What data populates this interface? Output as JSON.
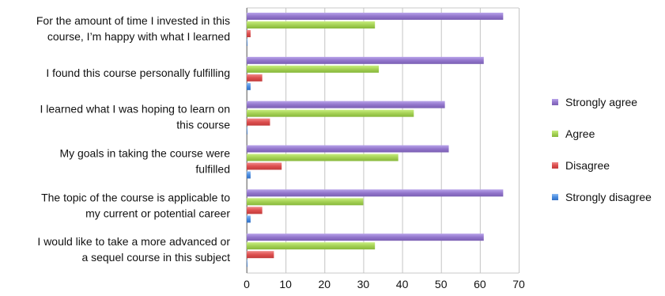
{
  "chart_data": {
    "type": "bar",
    "orientation": "horizontal",
    "categories": [
      [
        "For the amount of time I invested in this",
        "course, I’m happy with what I learned"
      ],
      [
        "I found this course personally fulfilling"
      ],
      [
        "I learned what I was hoping to learn on",
        "this course"
      ],
      [
        "My goals in taking the course were",
        "fulfilled"
      ],
      [
        "The topic of the course is applicable to",
        "my current or potential career"
      ],
      [
        "I would like to take a more advanced or",
        "a sequel course in this subject"
      ]
    ],
    "series": [
      {
        "name": "Strongly agree",
        "color": "#9b7fd1",
        "values": [
          66,
          61,
          51,
          52,
          66,
          61
        ]
      },
      {
        "name": "Agree",
        "color": "#a9d65a",
        "values": [
          33,
          34,
          43,
          39,
          30,
          33
        ]
      },
      {
        "name": "Disagree",
        "color": "#e05656",
        "values": [
          1,
          4,
          6,
          9,
          4,
          7
        ]
      },
      {
        "name": "Strongly disagree",
        "color": "#4f8fe0",
        "values": [
          0,
          1,
          0,
          1,
          1,
          0
        ]
      }
    ],
    "xlim": [
      0,
      70
    ],
    "xticks": [
      0,
      10,
      20,
      30,
      40,
      50,
      60,
      70
    ],
    "grid": true,
    "legend_position": "right",
    "title": "",
    "xlabel": "",
    "ylabel": ""
  }
}
